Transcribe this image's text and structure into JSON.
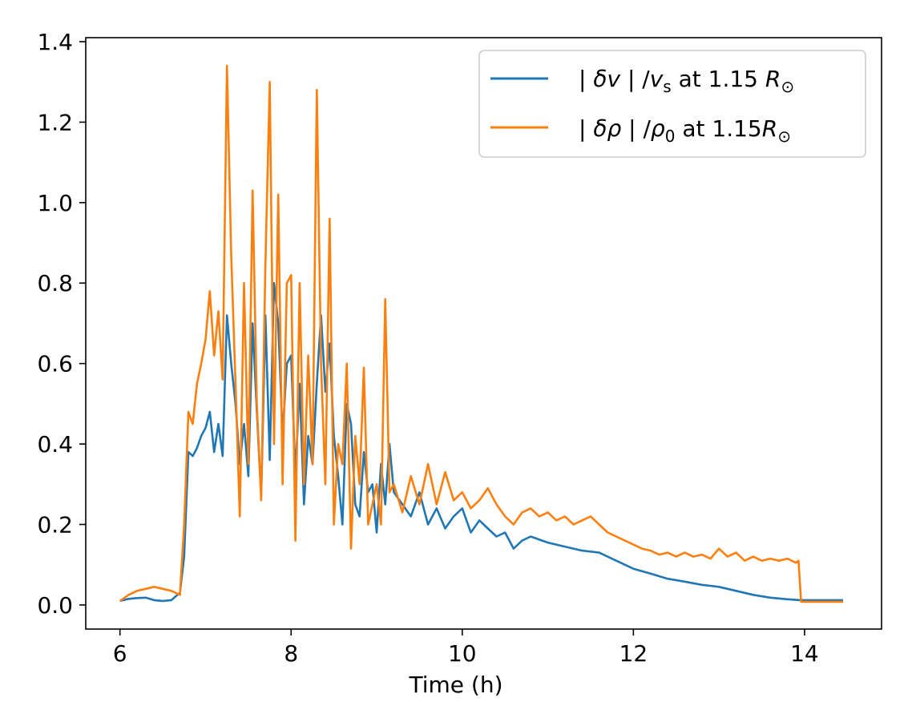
{
  "chart_data": {
    "type": "line",
    "title": "",
    "xlabel": "Time (h)",
    "ylabel": "",
    "xlim": [
      5.6,
      14.9
    ],
    "ylim": [
      -0.06,
      1.41
    ],
    "xticks": [
      6,
      8,
      10,
      12,
      14
    ],
    "xtick_labels": [
      "6",
      "8",
      "10",
      "12",
      "14"
    ],
    "yticks": [
      0.0,
      0.2,
      0.4,
      0.6,
      0.8,
      1.0,
      1.2,
      1.4
    ],
    "ytick_labels": [
      "0.0",
      "0.2",
      "0.4",
      "0.6",
      "0.8",
      "1.0",
      "1.2",
      "1.4"
    ],
    "grid": false,
    "legend_position": "top-right",
    "series": [
      {
        "name": "| δv | /v_s at 1.15 R_⊙",
        "legend_parts": [
          "| ",
          "δv",
          " | /",
          "v",
          "s",
          " at 1.15 ",
          "R",
          "⊙"
        ],
        "color": "#1f77b4",
        "x": [
          6.0,
          6.1,
          6.2,
          6.3,
          6.4,
          6.5,
          6.6,
          6.7,
          6.75,
          6.8,
          6.85,
          6.9,
          6.95,
          7.0,
          7.05,
          7.1,
          7.15,
          7.2,
          7.25,
          7.3,
          7.35,
          7.4,
          7.45,
          7.5,
          7.55,
          7.6,
          7.65,
          7.7,
          7.75,
          7.8,
          7.85,
          7.9,
          7.95,
          8.0,
          8.05,
          8.1,
          8.15,
          8.2,
          8.25,
          8.3,
          8.35,
          8.4,
          8.45,
          8.5,
          8.55,
          8.6,
          8.65,
          8.7,
          8.75,
          8.8,
          8.85,
          8.9,
          8.95,
          9.0,
          9.05,
          9.1,
          9.15,
          9.2,
          9.3,
          9.4,
          9.5,
          9.6,
          9.7,
          9.8,
          9.9,
          10.0,
          10.1,
          10.2,
          10.3,
          10.4,
          10.5,
          10.6,
          10.7,
          10.8,
          11.0,
          11.2,
          11.4,
          11.6,
          11.8,
          12.0,
          12.2,
          12.4,
          12.6,
          12.8,
          13.0,
          13.2,
          13.4,
          13.6,
          13.8,
          13.95,
          14.1,
          14.3,
          14.45
        ],
        "values": [
          0.01,
          0.015,
          0.017,
          0.018,
          0.012,
          0.01,
          0.012,
          0.03,
          0.12,
          0.38,
          0.37,
          0.39,
          0.42,
          0.44,
          0.48,
          0.38,
          0.45,
          0.37,
          0.72,
          0.6,
          0.5,
          0.35,
          0.45,
          0.32,
          0.7,
          0.48,
          0.27,
          0.72,
          0.36,
          0.8,
          0.7,
          0.42,
          0.6,
          0.62,
          0.32,
          0.55,
          0.25,
          0.42,
          0.35,
          0.55,
          0.72,
          0.53,
          0.65,
          0.42,
          0.32,
          0.2,
          0.5,
          0.45,
          0.25,
          0.22,
          0.38,
          0.28,
          0.3,
          0.18,
          0.35,
          0.25,
          0.4,
          0.28,
          0.25,
          0.22,
          0.28,
          0.2,
          0.24,
          0.19,
          0.22,
          0.24,
          0.18,
          0.21,
          0.19,
          0.17,
          0.18,
          0.14,
          0.16,
          0.17,
          0.155,
          0.145,
          0.135,
          0.13,
          0.11,
          0.09,
          0.078,
          0.065,
          0.058,
          0.05,
          0.045,
          0.035,
          0.025,
          0.018,
          0.014,
          0.012,
          0.012,
          0.012,
          0.012
        ]
      },
      {
        "name": "| δρ | /ρ_0 at 1.15R_⊙",
        "legend_parts": [
          "| ",
          "δρ",
          " | /",
          "ρ",
          "0",
          " at 1.15",
          "R",
          "⊙"
        ],
        "color": "#ff7f0e",
        "x": [
          6.0,
          6.1,
          6.2,
          6.3,
          6.4,
          6.5,
          6.6,
          6.7,
          6.75,
          6.8,
          6.85,
          6.9,
          6.95,
          7.0,
          7.05,
          7.1,
          7.15,
          7.2,
          7.25,
          7.3,
          7.35,
          7.4,
          7.45,
          7.5,
          7.55,
          7.6,
          7.65,
          7.7,
          7.75,
          7.8,
          7.85,
          7.9,
          7.95,
          8.0,
          8.05,
          8.1,
          8.15,
          8.2,
          8.25,
          8.3,
          8.35,
          8.4,
          8.45,
          8.5,
          8.55,
          8.6,
          8.65,
          8.7,
          8.75,
          8.8,
          8.85,
          8.9,
          8.95,
          9.0,
          9.05,
          9.1,
          9.15,
          9.2,
          9.3,
          9.4,
          9.5,
          9.6,
          9.7,
          9.8,
          9.9,
          10.0,
          10.1,
          10.2,
          10.3,
          10.4,
          10.5,
          10.6,
          10.7,
          10.8,
          10.9,
          11.0,
          11.1,
          11.2,
          11.3,
          11.4,
          11.5,
          11.6,
          11.7,
          11.8,
          11.9,
          12.0,
          12.1,
          12.2,
          12.3,
          12.4,
          12.5,
          12.6,
          12.7,
          12.8,
          12.9,
          13.0,
          13.1,
          13.2,
          13.3,
          13.4,
          13.5,
          13.6,
          13.7,
          13.8,
          13.9,
          13.93,
          13.96,
          14.1,
          14.3,
          14.45
        ],
        "values": [
          0.01,
          0.025,
          0.035,
          0.04,
          0.045,
          0.04,
          0.035,
          0.025,
          0.2,
          0.48,
          0.45,
          0.55,
          0.6,
          0.66,
          0.78,
          0.62,
          0.73,
          0.56,
          1.34,
          0.87,
          0.55,
          0.22,
          0.8,
          0.35,
          1.03,
          0.5,
          0.26,
          0.85,
          1.3,
          0.4,
          1.02,
          0.3,
          0.8,
          0.82,
          0.16,
          0.8,
          0.3,
          0.62,
          0.35,
          1.28,
          0.6,
          0.3,
          0.96,
          0.2,
          0.4,
          0.35,
          0.6,
          0.14,
          0.42,
          0.3,
          0.59,
          0.2,
          0.25,
          0.3,
          0.2,
          0.76,
          0.28,
          0.3,
          0.23,
          0.32,
          0.25,
          0.35,
          0.25,
          0.33,
          0.26,
          0.28,
          0.24,
          0.26,
          0.29,
          0.25,
          0.22,
          0.2,
          0.23,
          0.24,
          0.22,
          0.23,
          0.21,
          0.22,
          0.2,
          0.21,
          0.22,
          0.2,
          0.18,
          0.17,
          0.16,
          0.15,
          0.14,
          0.135,
          0.125,
          0.13,
          0.12,
          0.13,
          0.12,
          0.125,
          0.115,
          0.14,
          0.12,
          0.13,
          0.11,
          0.12,
          0.11,
          0.115,
          0.11,
          0.115,
          0.105,
          0.11,
          0.008,
          0.008,
          0.008,
          0.008
        ]
      }
    ]
  }
}
